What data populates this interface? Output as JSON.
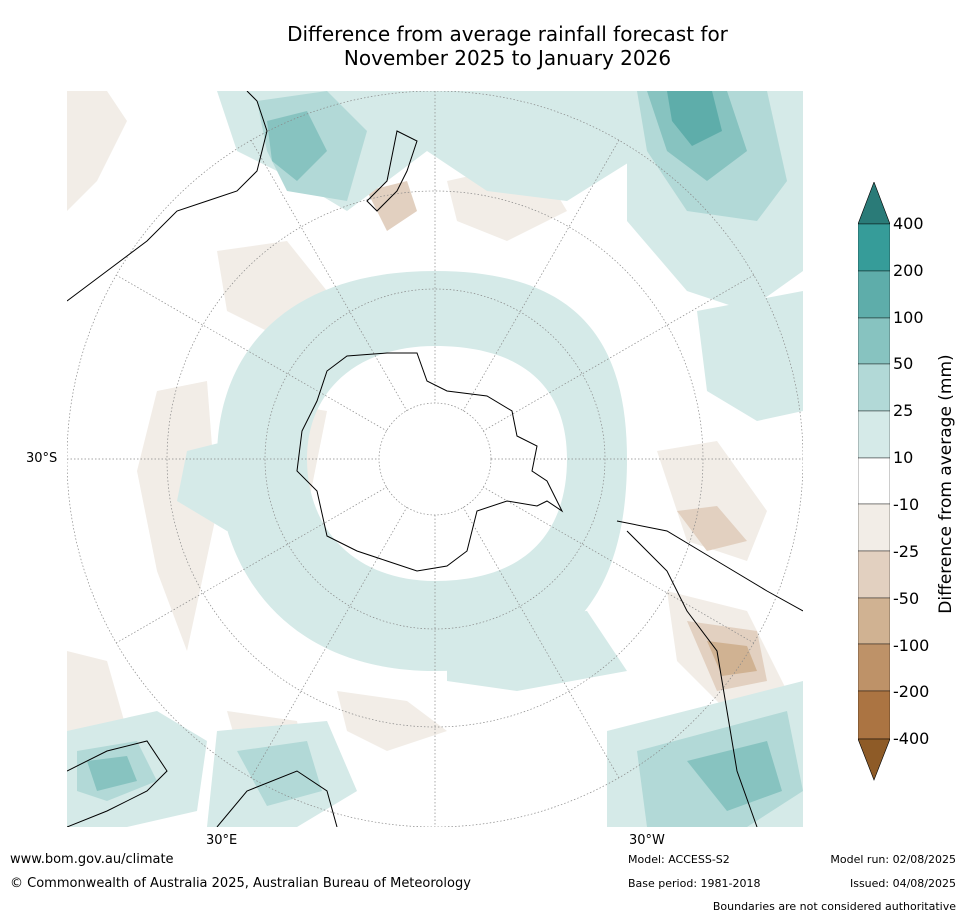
{
  "title_line1": "Difference from average rainfall forecast for",
  "title_line2": "November 2025 to January 2026",
  "map": {
    "latitude_label": "30°S",
    "longitude_labels": [
      "30°E",
      "30°W"
    ],
    "projection": "south-polar-stereographic",
    "gridlines": true
  },
  "colorbar": {
    "title": "Difference from average (mm)",
    "labels": [
      "400",
      "200",
      "100",
      "50",
      "25",
      "10",
      "-10",
      "-25",
      "-50",
      "-100",
      "-200",
      "-400"
    ],
    "colors": {
      "above_400": "#2a7b78",
      "c200_400": "#369c99",
      "c100_200": "#5eadaa",
      "c50_100": "#87c3c0",
      "c25_50": "#b2d9d7",
      "c10_25": "#d5eae8",
      "neutral": "#ffffff",
      "m10_25": "#f2ede7",
      "m25_50": "#e2d0c0",
      "m50_100": "#d0b292",
      "m100_200": "#be9268",
      "m200_400": "#ab7442",
      "below_400": "#8e5b27"
    }
  },
  "footer": {
    "website": "www.bom.gov.au/climate",
    "copyright": "© Commonwealth of Australia 2025, Australian Bureau of Meteorology",
    "model": "Model: ACCESS-S2",
    "base_period": "Base period: 1981-2018",
    "model_run": "Model run: 02/08/2025",
    "issued": "Issued: 04/08/2025",
    "disclaimer": "Boundaries are not considered authoritative"
  }
}
